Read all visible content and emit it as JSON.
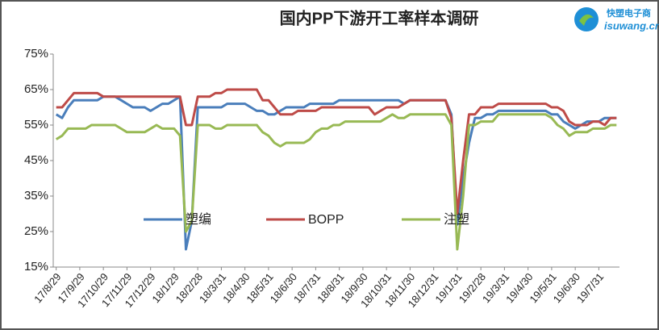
{
  "logo": {
    "name": "快塑电子商",
    "url": "isuwang.cn"
  },
  "chart_data": {
    "type": "line",
    "title": "国内PP下游开工率样本调研",
    "categories": [
      "17/8/29",
      null,
      null,
      null,
      "17/9/29",
      null,
      null,
      null,
      "17/10/29",
      null,
      null,
      null,
      "17/11/29",
      null,
      null,
      null,
      "17/12/29",
      null,
      null,
      null,
      "18/1/29",
      null,
      null,
      null,
      "18/2/28",
      null,
      null,
      null,
      "18/3/31",
      null,
      null,
      null,
      "18/4/30",
      null,
      null,
      null,
      "18/5/31",
      null,
      null,
      null,
      "18/6/30",
      null,
      null,
      null,
      "18/7/31",
      null,
      null,
      null,
      "18/8/31",
      null,
      null,
      null,
      "18/9/30",
      null,
      null,
      null,
      "18/10/31",
      null,
      null,
      null,
      "18/11/30",
      null,
      null,
      null,
      "18/12/31",
      null,
      null,
      null,
      "19/1/31",
      null,
      null,
      null,
      "19/2/28",
      null,
      null,
      null,
      "19/3/31",
      null,
      null,
      null,
      "19/4/30",
      null,
      null,
      null,
      "19/5/31",
      null,
      null,
      null,
      "19/6/30",
      null,
      null,
      null,
      "19/7/31",
      null,
      null,
      null
    ],
    "series": [
      {
        "name": "塑编",
        "color": "#4a7ebb",
        "values": [
          58,
          57,
          60,
          62,
          62,
          62,
          62,
          62,
          63,
          63,
          63,
          62,
          61,
          60,
          60,
          60,
          59,
          60,
          61,
          61,
          62,
          63,
          20,
          28,
          60,
          60,
          60,
          60,
          60,
          61,
          61,
          61,
          61,
          60,
          59,
          59,
          58,
          58,
          59,
          60,
          60,
          60,
          60,
          61,
          61,
          61,
          61,
          61,
          62,
          62,
          62,
          62,
          62,
          62,
          62,
          62,
          62,
          62,
          62,
          61,
          62,
          62,
          62,
          62,
          62,
          62,
          62,
          58,
          27,
          40,
          50,
          57,
          57,
          58,
          58,
          59,
          59,
          59,
          59,
          59,
          59,
          59,
          59,
          59,
          58,
          58,
          56,
          55,
          54,
          55,
          56,
          56,
          56,
          57,
          57,
          57
        ]
      },
      {
        "name": "BOPP",
        "color": "#be4b48",
        "values": [
          60,
          60,
          62,
          64,
          64,
          64,
          64,
          64,
          63,
          63,
          63,
          63,
          63,
          63,
          63,
          63,
          63,
          63,
          63,
          63,
          63,
          63,
          55,
          55,
          63,
          63,
          63,
          64,
          64,
          65,
          65,
          65,
          65,
          65,
          65,
          62,
          62,
          60,
          58,
          58,
          58,
          59,
          59,
          59,
          59,
          60,
          60,
          60,
          60,
          60,
          60,
          60,
          60,
          60,
          58,
          59,
          60,
          60,
          60,
          61,
          62,
          62,
          62,
          62,
          62,
          62,
          62,
          57,
          30,
          45,
          58,
          58,
          60,
          60,
          60,
          61,
          61,
          61,
          61,
          61,
          61,
          61,
          61,
          61,
          60,
          60,
          59,
          56,
          55,
          55,
          55,
          56,
          56,
          55,
          57,
          57
        ]
      },
      {
        "name": "注塑",
        "color": "#98b954",
        "values": [
          51,
          52,
          54,
          54,
          54,
          54,
          55,
          55,
          55,
          55,
          55,
          54,
          53,
          53,
          53,
          53,
          54,
          55,
          54,
          54,
          54,
          52,
          25,
          28,
          55,
          55,
          55,
          54,
          54,
          55,
          55,
          55,
          55,
          55,
          55,
          53,
          52,
          50,
          49,
          50,
          50,
          50,
          50,
          51,
          53,
          54,
          54,
          55,
          55,
          56,
          56,
          56,
          56,
          56,
          56,
          56,
          57,
          58,
          57,
          57,
          58,
          58,
          58,
          58,
          58,
          58,
          58,
          55,
          20,
          35,
          55,
          55,
          56,
          56,
          56,
          58,
          58,
          58,
          58,
          58,
          58,
          58,
          58,
          58,
          57,
          55,
          54,
          52,
          53,
          53,
          53,
          54,
          54,
          54,
          55,
          55
        ]
      }
    ],
    "ylim": [
      15,
      75
    ],
    "yticks": [
      {
        "value": 15,
        "label": "15%"
      },
      {
        "value": 25,
        "label": "25%"
      },
      {
        "value": 35,
        "label": "35%"
      },
      {
        "value": 45,
        "label": "45%"
      },
      {
        "value": 55,
        "label": "55%"
      },
      {
        "value": 65,
        "label": "65%"
      },
      {
        "value": 75,
        "label": "75%"
      }
    ],
    "grid": false
  }
}
